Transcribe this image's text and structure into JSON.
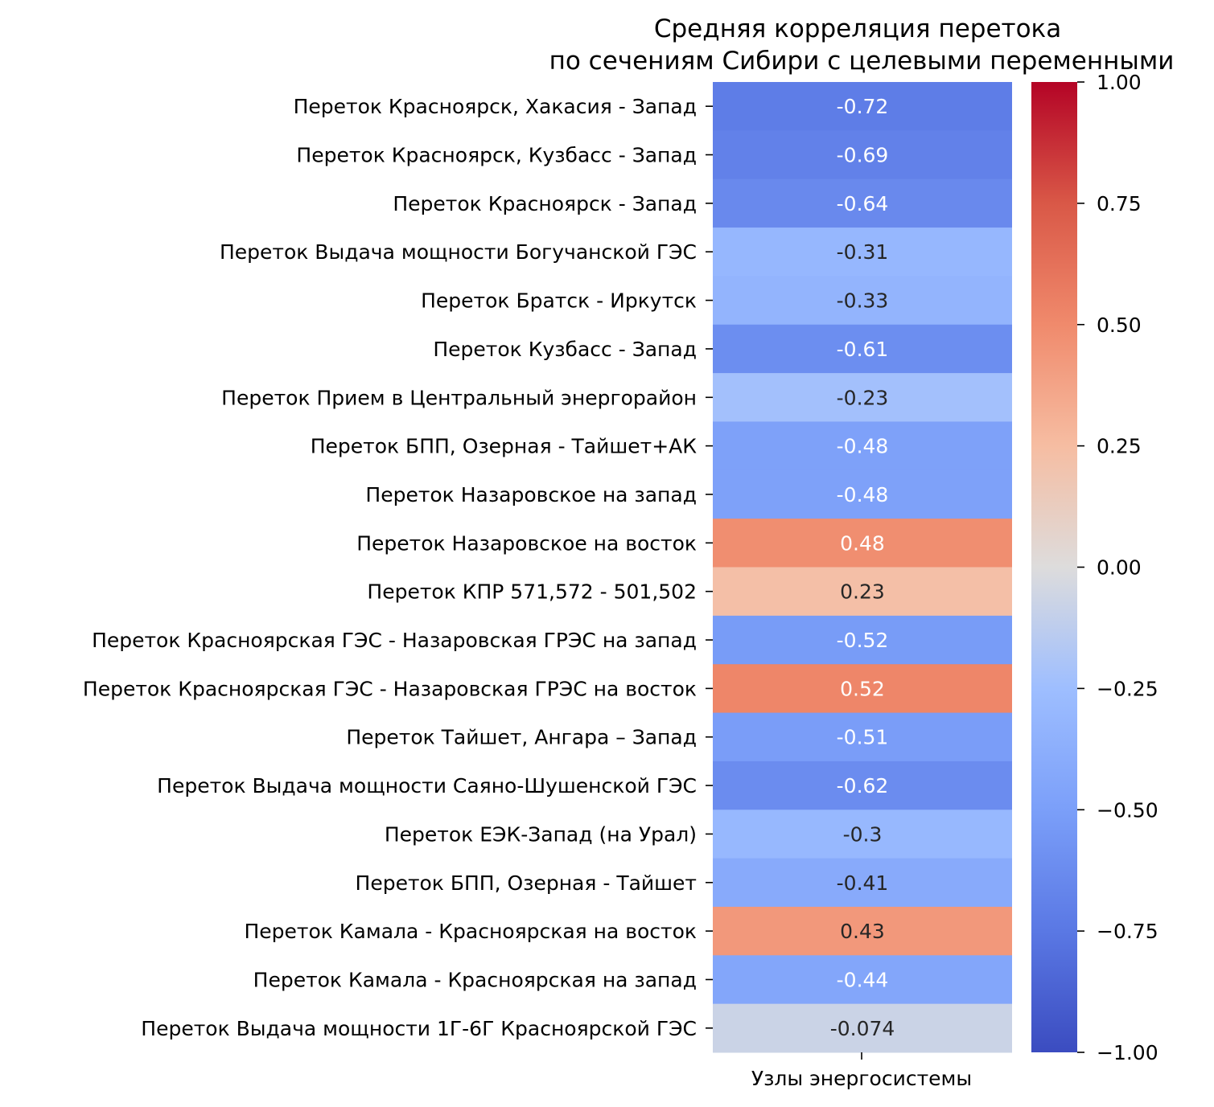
{
  "chart_data": {
    "type": "heatmap",
    "title": "Средняя корреляция перетока\nпо сечениям Сибири с целевыми переменными",
    "xlabel": "",
    "ylabel": "",
    "columns": [
      "Узлы энергосистемы"
    ],
    "rows": [
      "Переток Красноярск, Хакасия - Запад",
      "Переток Красноярск, Кузбасс - Запад",
      "Переток Красноярск - Запад",
      "Переток Выдача мощности Богучанской ГЭС",
      "Переток Братск - Иркутск",
      "Переток Кузбасс - Запад",
      "Переток Прием в Центральный энергорайон",
      "Переток БПП, Озерная - Тайшет+АК",
      "Переток Назаровское на запад",
      "Переток Назаровское на восток",
      "Переток КПР 571,572 - 501,502",
      "Переток Красноярская ГЭС - Назаровская ГРЭС на запад",
      "Переток Красноярская ГЭС - Назаровская ГРЭС на восток",
      "Переток Тайшет, Ангара – Запад",
      "Переток Выдача мощности Саяно-Шушенской ГЭС",
      "Переток ЕЭК-Запад (на Урал)",
      "Переток БПП, Озерная - Тайшет",
      "Переток Камала - Красноярская на восток",
      "Переток Камала - Красноярская на запад",
      "Переток Выдача мощности 1Г-6Г Красноярской ГЭС"
    ],
    "values": [
      -0.72,
      -0.69,
      -0.64,
      -0.31,
      -0.33,
      -0.61,
      -0.23,
      -0.48,
      -0.48,
      0.48,
      0.23,
      -0.52,
      0.52,
      -0.51,
      -0.62,
      -0.3,
      -0.41,
      0.43,
      -0.44,
      -0.074
    ],
    "annotations": [
      "-0.72",
      "-0.69",
      "-0.64",
      "-0.31",
      "-0.33",
      "-0.61",
      "-0.23",
      "-0.48",
      "-0.48",
      "0.48",
      "0.23",
      "-0.52",
      "0.52",
      "-0.51",
      "-0.62",
      "-0.3",
      "-0.41",
      "0.43",
      "-0.44",
      "-0.074"
    ],
    "colorbar": {
      "colormap": "coolwarm",
      "range": [
        -1.0,
        1.0
      ],
      "ticks": [
        1.0,
        0.75,
        0.5,
        0.25,
        0.0,
        -0.25,
        -0.5,
        -0.75,
        -1.0
      ],
      "tick_labels": [
        "1.00",
        "0.75",
        "0.50",
        "0.25",
        "0.00",
        "−0.25",
        "−0.50",
        "−0.75",
        "−1.00"
      ]
    }
  }
}
